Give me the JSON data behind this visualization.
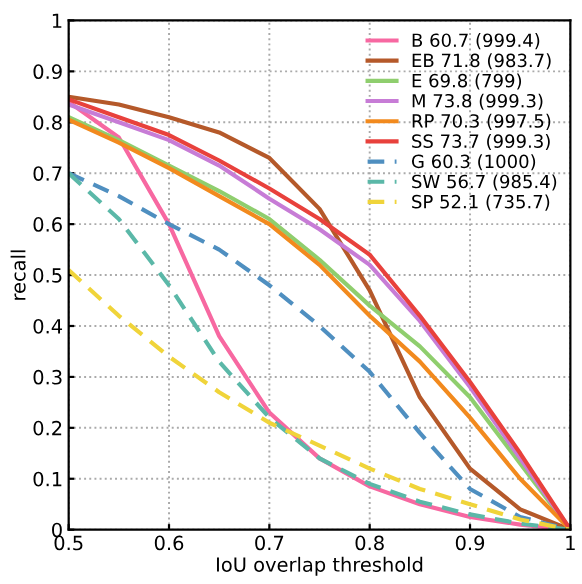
{
  "chart_data": {
    "type": "line",
    "xlabel": "IoU overlap threshold",
    "ylabel": "recall",
    "x": [
      0.5,
      0.55,
      0.6,
      0.65,
      0.7,
      0.75,
      0.8,
      0.85,
      0.9,
      0.95,
      1
    ],
    "xlim": [
      0.5,
      1
    ],
    "ylim": [
      0,
      1
    ],
    "xticks": [
      0.5,
      0.6,
      0.7,
      0.8,
      0.9,
      1
    ],
    "yticks": [
      0,
      0.1,
      0.2,
      0.3,
      0.4,
      0.5,
      0.6,
      0.7,
      0.8,
      0.9,
      1
    ],
    "grid": true,
    "legend": "top right",
    "marker": "none",
    "series": [
      {
        "name": "B 60.7 (999.4)",
        "color": "#f768a1",
        "line_style": "solid",
        "values": [
          0.84,
          0.77,
          0.6,
          0.38,
          0.23,
          0.14,
          0.085,
          0.05,
          0.025,
          0.01,
          0
        ]
      },
      {
        "name": "EB 71.8 (983.7)",
        "color": "#b5592a",
        "line_style": "solid",
        "values": [
          0.85,
          0.835,
          0.81,
          0.78,
          0.73,
          0.63,
          0.47,
          0.26,
          0.12,
          0.04,
          0
        ]
      },
      {
        "name": "E 69.8 (799)",
        "color": "#8fce6e",
        "line_style": "solid",
        "values": [
          0.81,
          0.765,
          0.715,
          0.665,
          0.61,
          0.53,
          0.44,
          0.36,
          0.26,
          0.13,
          0
        ]
      },
      {
        "name": "M 73.8 (999.3)",
        "color": "#c77cd6",
        "line_style": "solid",
        "values": [
          0.835,
          0.8,
          0.765,
          0.715,
          0.65,
          0.59,
          0.52,
          0.41,
          0.28,
          0.14,
          0
        ]
      },
      {
        "name": "RP 70.3 (997.5)",
        "color": "#f28a1e",
        "line_style": "solid",
        "values": [
          0.805,
          0.76,
          0.71,
          0.655,
          0.6,
          0.52,
          0.42,
          0.33,
          0.22,
          0.1,
          0
        ]
      },
      {
        "name": "SS 73.7 (999.3)",
        "color": "#e8413c",
        "line_style": "solid",
        "values": [
          0.845,
          0.81,
          0.775,
          0.725,
          0.67,
          0.61,
          0.54,
          0.42,
          0.29,
          0.15,
          0
        ]
      },
      {
        "name": "G 60.3 (1000)",
        "color": "#4f8fc0",
        "line_style": "dashed",
        "values": [
          0.7,
          0.655,
          0.6,
          0.55,
          0.48,
          0.4,
          0.31,
          0.19,
          0.08,
          0.025,
          0
        ]
      },
      {
        "name": "SW 56.7 (985.4)",
        "color": "#5bb8a8",
        "line_style": "dashed",
        "values": [
          0.7,
          0.61,
          0.48,
          0.33,
          0.22,
          0.14,
          0.09,
          0.055,
          0.03,
          0.012,
          0
        ]
      },
      {
        "name": "SP 52.1 (735.7)",
        "color": "#f0d43a",
        "line_style": "dashed",
        "values": [
          0.51,
          0.42,
          0.34,
          0.27,
          0.21,
          0.165,
          0.12,
          0.08,
          0.05,
          0.02,
          0
        ]
      }
    ]
  }
}
